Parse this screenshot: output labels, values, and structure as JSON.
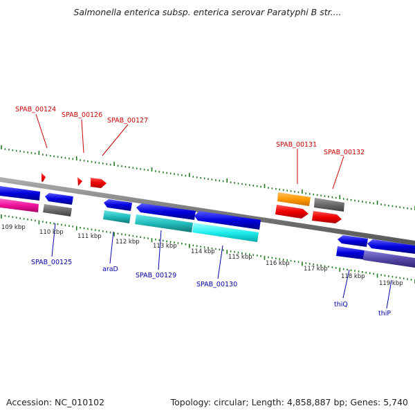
{
  "title": "Salmonella enterica subsp. enterica serovar Paratyphi B str....",
  "footer": {
    "accession": "Accession: NC_010102",
    "topology": "Topology: circular; Length: 4,858,887 bp; Genes: 5,740"
  },
  "colors": {
    "backbone": "#8c8c8c",
    "tick": "#1d7a1d",
    "label_top": "#cc0000",
    "label_bottom": "#0000aa"
  },
  "tick_labels": [
    "109 kbp",
    "110 kbp",
    "111 kbp",
    "112 kbp",
    "113 kbp",
    "114 kbp",
    "115 kbp",
    "116 kbp",
    "117 kbp",
    "118 kbp",
    "119 kbp"
  ],
  "gene_labels_top": [
    "SPAB_00124",
    "SPAB_00126",
    "SPAB_00127",
    "SPAB_00131",
    "SPAB_00132"
  ],
  "gene_labels_bottom": [
    "SPAB_00125",
    "araD",
    "SPAB_00129",
    "SPAB_00130",
    "thiQ",
    "thiP"
  ]
}
